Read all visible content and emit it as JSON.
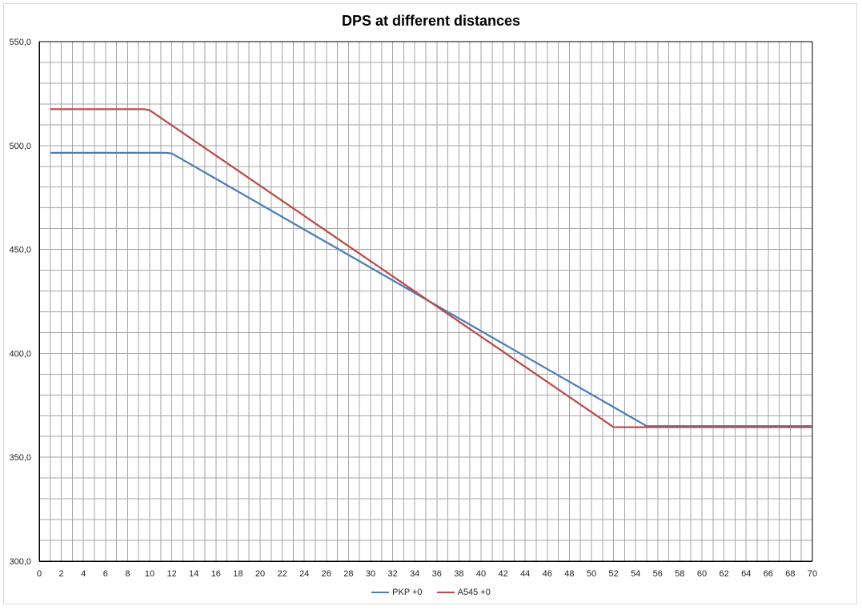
{
  "chart_data": {
    "type": "line",
    "title": "DPS at different distances",
    "xlabel": "",
    "ylabel": "",
    "xlim": [
      0,
      70
    ],
    "ylim": [
      300,
      550
    ],
    "x_ticks": [
      "0",
      "2",
      "4",
      "6",
      "8",
      "10",
      "12",
      "14",
      "16",
      "18",
      "20",
      "22",
      "24",
      "26",
      "28",
      "30",
      "32",
      "34",
      "36",
      "38",
      "40",
      "42",
      "44",
      "46",
      "48",
      "50",
      "52",
      "54",
      "56",
      "58",
      "60",
      "62",
      "64",
      "66",
      "68",
      "70"
    ],
    "y_ticks": [
      "300,0",
      "350,0",
      "400,0",
      "450,0",
      "500,0",
      "550,0"
    ],
    "grid": true,
    "legend_position": "bottom",
    "series": [
      {
        "name": "PKP +0",
        "color": "#4a7ebb",
        "points": [
          [
            1,
            496.5
          ],
          [
            11.5,
            496.5
          ],
          [
            12,
            496.2
          ],
          [
            55,
            365
          ],
          [
            70,
            365
          ]
        ]
      },
      {
        "name": "A545 +0",
        "color": "#be4b48",
        "points": [
          [
            1,
            517.5
          ],
          [
            9.5,
            517.5
          ],
          [
            10,
            517
          ],
          [
            52,
            364.5
          ],
          [
            70,
            364.5
          ]
        ]
      }
    ]
  }
}
